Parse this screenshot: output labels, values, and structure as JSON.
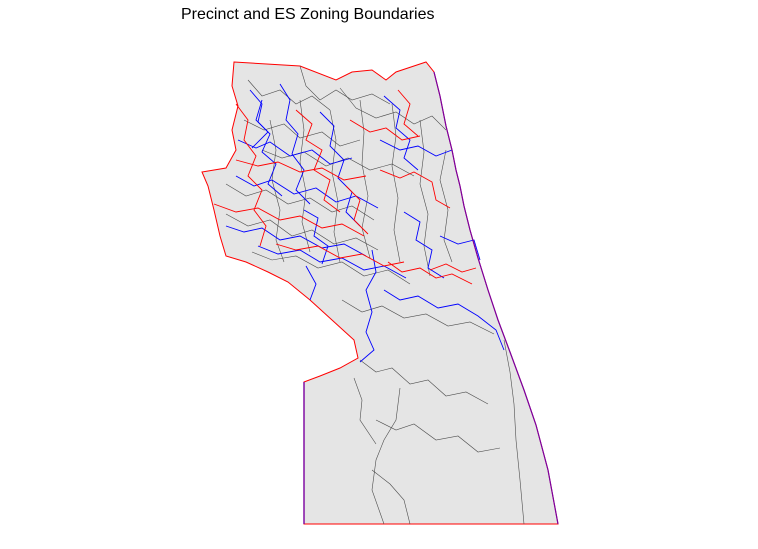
{
  "title": "Precinct and ES Zoning Boundaries",
  "colors": {
    "background": "#ffffff",
    "fill": "#e5e5e5",
    "precinct_boundary": "#4d4d4d",
    "es_zone_boundary": "#0000ff",
    "outer_boundary": "#ff0000"
  }
}
